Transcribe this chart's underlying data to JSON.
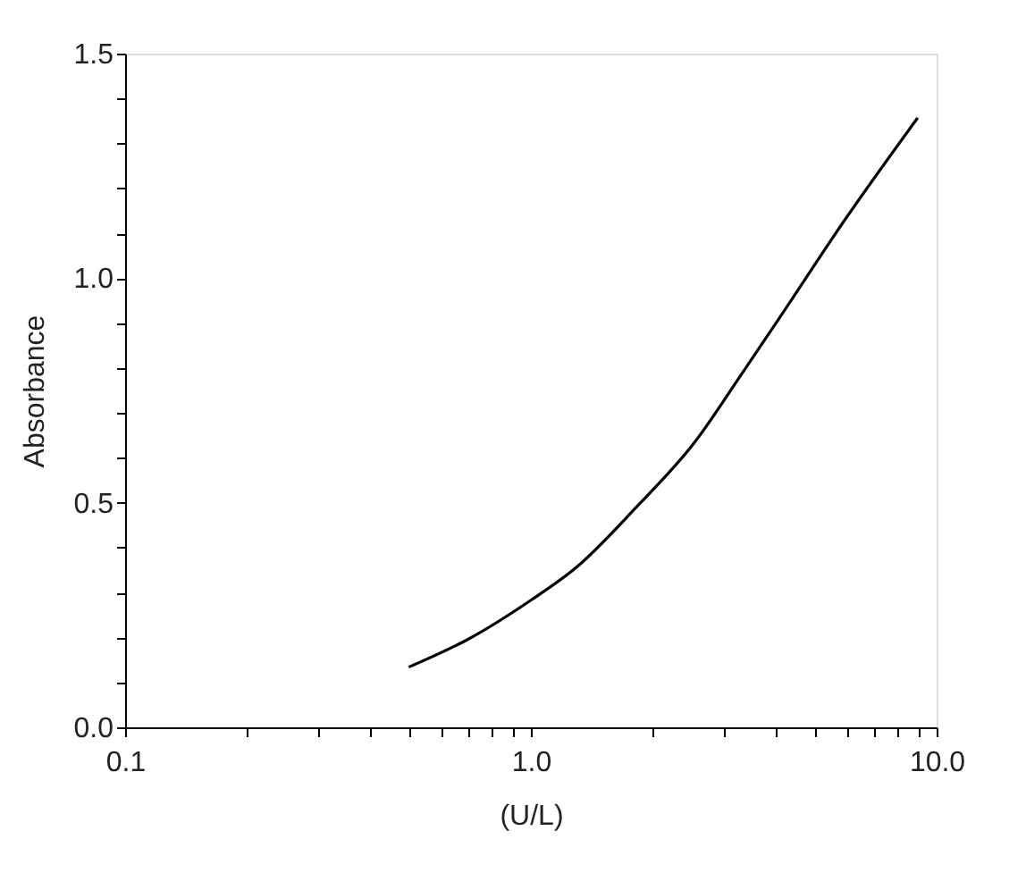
{
  "chart_data": {
    "type": "line",
    "xlabel": "(U/L)",
    "ylabel": "Absorbance",
    "x": [
      0.5,
      0.7,
      1.0,
      1.29,
      1.81,
      2.53,
      3.31,
      4.2,
      5.89,
      8.98
    ],
    "series": [
      {
        "color": "#000000",
        "values": [
          0.134,
          0.196,
          0.283,
          0.355,
          0.488,
          0.634,
          0.787,
          0.926,
          1.125,
          1.357
        ]
      }
    ],
    "log": "x",
    "grid": false,
    "marker": "none",
    "line_style": "solid",
    "xlim": [
      0.1,
      10
    ],
    "ylim": [
      0,
      1.5
    ],
    "xticks": [
      {
        "value": 0.1,
        "label": "0.1"
      },
      {
        "value": 0.2,
        "label": null
      },
      {
        "value": 0.3,
        "label": null
      },
      {
        "value": 0.4,
        "label": null
      },
      {
        "value": 0.5,
        "label": null
      },
      {
        "value": 0.6,
        "label": null
      },
      {
        "value": 0.7,
        "label": null
      },
      {
        "value": 0.8,
        "label": null
      },
      {
        "value": 0.9,
        "label": null
      },
      {
        "value": 1,
        "label": "1.0"
      },
      {
        "value": 2,
        "label": null
      },
      {
        "value": 3,
        "label": null
      },
      {
        "value": 4,
        "label": null
      },
      {
        "value": 5,
        "label": null
      },
      {
        "value": 6,
        "label": null
      },
      {
        "value": 7,
        "label": null
      },
      {
        "value": 8,
        "label": null
      },
      {
        "value": 9,
        "label": null
      },
      {
        "value": 10,
        "label": "10.0"
      }
    ],
    "yticks": [
      {
        "value": 0,
        "label": "0.0"
      },
      {
        "value": 0.1,
        "label": null
      },
      {
        "value": 0.2,
        "label": null
      },
      {
        "value": 0.3,
        "label": null
      },
      {
        "value": 0.4,
        "label": null
      },
      {
        "value": 0.5,
        "label": "0.5"
      },
      {
        "value": 0.6,
        "label": null
      },
      {
        "value": 0.7,
        "label": null
      },
      {
        "value": 0.8,
        "label": null
      },
      {
        "value": 0.9,
        "label": null
      },
      {
        "value": 1,
        "label": "1.0"
      },
      {
        "value": 1.1,
        "label": null
      },
      {
        "value": 1.2,
        "label": null
      },
      {
        "value": 1.3,
        "label": null
      },
      {
        "value": 1.4,
        "label": null
      },
      {
        "value": 1.5,
        "label": "1.5"
      }
    ]
  }
}
